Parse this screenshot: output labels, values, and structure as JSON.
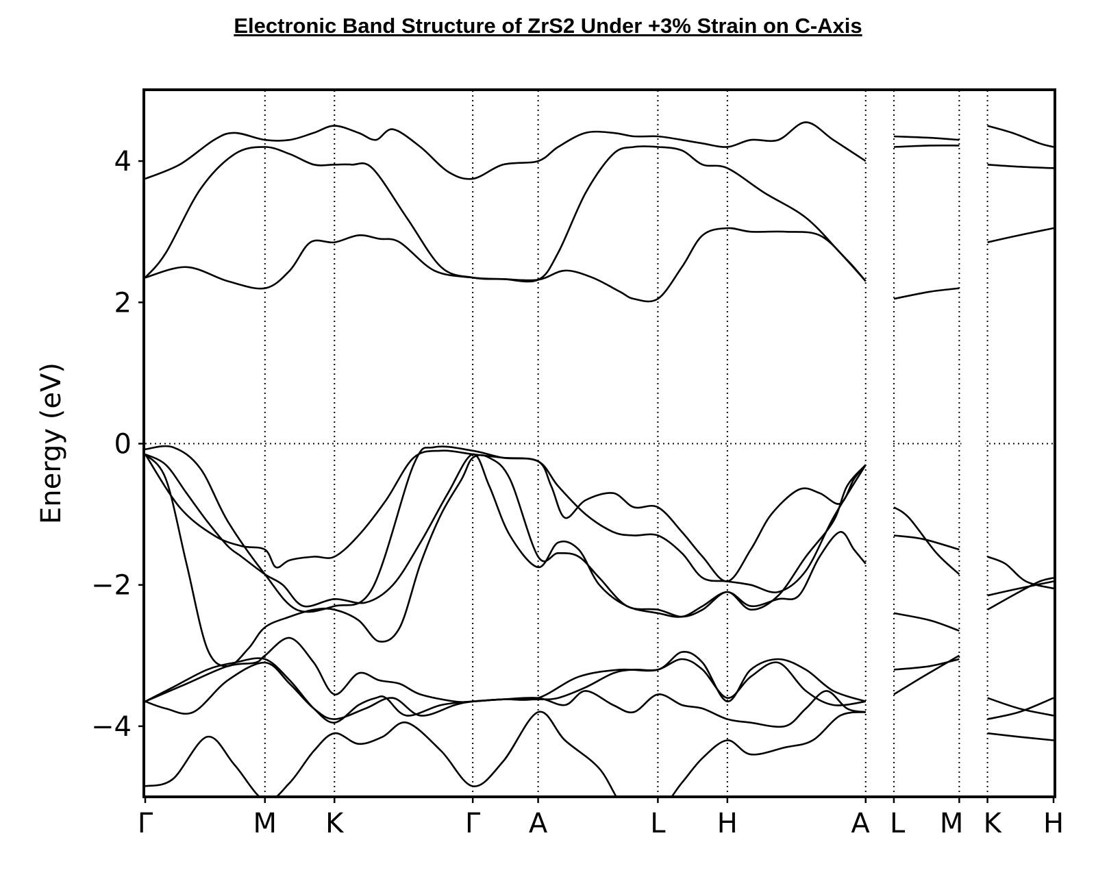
{
  "chart_data": {
    "type": "line",
    "title": "Electronic Band Structure of ZrS2 Under +3% Strain on C-Axis",
    "xlabel": "",
    "ylabel": "Energy (eV)",
    "ylim": [
      -5,
      5
    ],
    "x_range": [
      0,
      13.2
    ],
    "fermi_level": 0,
    "y_ticks": [
      {
        "value": 4,
        "label": "4"
      },
      {
        "value": 2,
        "label": "2"
      },
      {
        "value": 0,
        "label": "0"
      },
      {
        "value": -2,
        "label": "−2"
      },
      {
        "value": -4,
        "label": "−4"
      }
    ],
    "high_symmetry_points": [
      {
        "x": 0.0,
        "label": "Γ"
      },
      {
        "x": 1.74,
        "label": "M"
      },
      {
        "x": 2.75,
        "label": "K"
      },
      {
        "x": 4.76,
        "label": "Γ"
      },
      {
        "x": 5.71,
        "label": "A"
      },
      {
        "x": 7.45,
        "label": "L"
      },
      {
        "x": 8.46,
        "label": "H"
      },
      {
        "x": 10.47,
        "label": "A"
      },
      {
        "x": 10.88,
        "label": "L"
      },
      {
        "x": 11.83,
        "label": "M"
      },
      {
        "x": 12.24,
        "label": "K"
      },
      {
        "x": 13.2,
        "label": "H"
      }
    ],
    "segments": [
      {
        "x_range": [
          0.0,
          10.47
        ],
        "bands": [
          {
            "x": [
              0,
              0.4,
              0.9,
              1.3,
              1.74,
              2.1,
              2.45,
              2.75,
              3.1,
              3.45,
              3.8,
              4.3,
              4.76,
              5.2,
              5.71,
              6.1,
              6.6,
              7.0,
              7.45,
              7.8,
              8.1,
              8.46,
              8.8,
              9.3,
              9.7,
              10.1,
              10.47
            ],
            "y": [
              -4.85,
              -4.75,
              -4.15,
              -4.55,
              -5.05,
              -4.8,
              -4.35,
              -4.1,
              -4.25,
              -4.15,
              -3.95,
              -4.35,
              -4.85,
              -4.5,
              -3.8,
              -4.2,
              -4.6,
              -5.2,
              -5.2,
              -4.8,
              -4.45,
              -4.2,
              -4.4,
              -4.3,
              -4.2,
              -3.85,
              -3.8
            ]
          },
          {
            "x": [
              0,
              0.3,
              0.7,
              1.2,
              1.74,
              2.1,
              2.45,
              2.75,
              3.2,
              3.6,
              4.0,
              4.5,
              4.76,
              5.2,
              5.71,
              6.1,
              6.4,
              6.8,
              7.1,
              7.45,
              7.8,
              8.1,
              8.46,
              8.8,
              9.3,
              9.6,
              9.9,
              10.2,
              10.47
            ],
            "y": [
              -3.65,
              -3.75,
              -3.8,
              -3.35,
              -3.1,
              -3.4,
              -3.75,
              -3.9,
              -3.75,
              -3.6,
              -3.85,
              -3.7,
              -3.65,
              -3.62,
              -3.6,
              -3.7,
              -3.5,
              -3.7,
              -3.8,
              -3.55,
              -3.7,
              -3.75,
              -3.9,
              -3.95,
              -4.0,
              -3.75,
              -3.5,
              -3.75,
              -3.8
            ]
          },
          {
            "x": [
              0,
              0.4,
              0.9,
              1.3,
              1.74,
              2.1,
              2.45,
              2.75,
              3.1,
              3.35,
              3.5,
              3.8,
              4.3,
              4.76,
              5.2,
              5.71,
              6.3,
              6.9,
              7.45,
              7.8,
              8.1,
              8.46,
              8.8,
              9.2,
              9.6,
              10.0,
              10.47
            ],
            "y": [
              -3.65,
              -3.45,
              -3.2,
              -3.1,
              -3.05,
              -3.35,
              -3.75,
              -3.95,
              -3.7,
              -3.6,
              -3.6,
              -3.85,
              -3.7,
              -3.65,
              -3.62,
              -3.6,
              -3.3,
              -3.2,
              -3.2,
              -2.95,
              -3.1,
              -3.65,
              -3.2,
              -3.05,
              -3.2,
              -3.5,
              -3.65
            ]
          },
          {
            "x": [
              0,
              0.6,
              1.2,
              1.6,
              1.74,
              2.1,
              2.45,
              2.75,
              3.1,
              3.4,
              3.7,
              4.0,
              4.5,
              4.76,
              5.2,
              5.71,
              6.0,
              6.4,
              6.8,
              7.1,
              7.45,
              7.8,
              8.1,
              8.46,
              8.8,
              9.2,
              9.6,
              10.0,
              10.47
            ],
            "y": [
              -3.65,
              -3.4,
              -3.15,
              -3.1,
              -3.0,
              -2.75,
              -3.1,
              -3.55,
              -3.25,
              -3.35,
              -3.4,
              -3.55,
              -3.65,
              -3.65,
              -3.62,
              -3.62,
              -3.6,
              -3.45,
              -3.25,
              -3.2,
              -3.2,
              -3.05,
              -3.2,
              -3.6,
              -3.3,
              -3.1,
              -3.5,
              -3.7,
              -3.65
            ]
          },
          {
            "x": [
              0,
              0.3,
              0.6,
              0.9,
              1.2,
              1.5,
              1.74,
              2.1,
              2.45,
              2.75,
              3.1,
              3.4,
              3.7,
              4.0,
              4.3,
              4.6,
              4.76,
              5.0,
              5.3,
              5.71,
              6.0,
              6.3,
              6.6,
              7.0,
              7.45,
              7.8,
              8.1,
              8.46,
              8.8,
              9.2,
              9.6,
              10.0,
              10.2,
              10.47
            ],
            "y": [
              -0.15,
              -0.5,
              -1.7,
              -2.9,
              -3.15,
              -2.9,
              -2.6,
              -2.45,
              -2.35,
              -2.35,
              -2.5,
              -2.8,
              -2.6,
              -1.7,
              -1.0,
              -0.5,
              -0.2,
              -0.2,
              -0.5,
              -1.6,
              -1.55,
              -1.6,
              -1.9,
              -2.3,
              -2.35,
              -2.45,
              -2.35,
              -2.1,
              -2.35,
              -2.15,
              -1.6,
              -1.1,
              -0.6,
              -0.3
            ]
          },
          {
            "x": [
              0,
              0.3,
              0.6,
              0.9,
              1.2,
              1.4,
              1.74,
              2.0,
              2.3,
              2.75,
              3.2,
              3.6,
              4.0,
              4.4,
              4.76,
              5.0,
              5.3,
              5.71,
              6.0,
              6.3,
              6.6,
              7.0,
              7.45,
              7.8,
              8.1,
              8.46,
              8.8,
              9.2,
              9.5,
              9.8,
              10.1,
              10.3,
              10.47
            ],
            "y": [
              -0.15,
              -0.3,
              -0.7,
              -1.1,
              -1.45,
              -1.6,
              -1.85,
              -2.0,
              -2.3,
              -2.2,
              -2.25,
              -2.0,
              -1.4,
              -0.7,
              -0.15,
              -0.6,
              -1.3,
              -1.75,
              -1.4,
              -1.5,
              -2.0,
              -2.3,
              -2.4,
              -2.45,
              -2.3,
              -2.1,
              -2.3,
              -2.2,
              -2.15,
              -1.6,
              -1.25,
              -1.5,
              -1.7
            ]
          },
          {
            "x": [
              0,
              0.5,
              1.0,
              1.4,
              1.74,
              1.9,
              2.1,
              2.45,
              2.75,
              3.1,
              3.5,
              3.9,
              4.3,
              4.76,
              5.2,
              5.71,
              5.9,
              6.1,
              6.4,
              6.8,
              7.1,
              7.45,
              7.8,
              8.1,
              8.46,
              8.8,
              9.1,
              9.5,
              9.8,
              10.1,
              10.3,
              10.47
            ],
            "y": [
              -0.15,
              -0.9,
              -1.3,
              -1.45,
              -1.5,
              -1.75,
              -1.65,
              -1.6,
              -1.6,
              -1.3,
              -0.8,
              -0.2,
              -0.1,
              -0.15,
              -0.2,
              -0.25,
              -0.6,
              -1.05,
              -0.8,
              -0.7,
              -0.9,
              -0.9,
              -1.25,
              -1.6,
              -1.95,
              -1.5,
              -1.0,
              -0.65,
              -0.7,
              -0.85,
              -0.5,
              -0.3
            ]
          },
          {
            "x": [
              0,
              0.4,
              0.8,
              1.2,
              1.74,
              2.2,
              2.75,
              3.3,
              3.9,
              4.2,
              4.76,
              5.2,
              5.71,
              6.0,
              6.4,
              6.8,
              7.1,
              7.45,
              7.8,
              8.1,
              8.46,
              8.8,
              9.2,
              9.6,
              10.0,
              10.47
            ],
            "y": [
              -0.08,
              -0.05,
              -0.35,
              -1.1,
              -1.85,
              -2.35,
              -2.3,
              -2.05,
              -0.3,
              -0.05,
              -0.1,
              -0.2,
              -0.25,
              -0.6,
              -1.0,
              -1.25,
              -1.3,
              -1.3,
              -1.55,
              -1.9,
              -1.95,
              -2.0,
              -2.1,
              -1.8,
              -1.05,
              -0.3
            ]
          },
          {
            "x": [
              0,
              0.6,
              1.2,
              1.74,
              2.1,
              2.4,
              2.75,
              3.1,
              3.4,
              3.7,
              4.2,
              4.76,
              5.2,
              5.71,
              6.1,
              6.5,
              6.9,
              7.1,
              7.45,
              7.8,
              8.1,
              8.46,
              8.8,
              9.3,
              9.8,
              10.2,
              10.47
            ],
            "y": [
              2.35,
              2.5,
              2.3,
              2.2,
              2.45,
              2.85,
              2.85,
              2.95,
              2.9,
              2.85,
              2.45,
              2.35,
              2.33,
              2.32,
              2.45,
              2.35,
              2.15,
              2.05,
              2.05,
              2.5,
              2.95,
              3.05,
              3.0,
              3.0,
              2.95,
              2.6,
              2.3
            ]
          },
          {
            "x": [
              0,
              0.3,
              0.8,
              1.3,
              1.74,
              2.1,
              2.45,
              2.75,
              3.0,
              3.3,
              3.8,
              4.3,
              4.76,
              5.2,
              5.71,
              6.0,
              6.4,
              6.8,
              7.1,
              7.45,
              7.8,
              8.1,
              8.46,
              9.0,
              9.6,
              10.1,
              10.47
            ],
            "y": [
              2.35,
              2.7,
              3.6,
              4.1,
              4.2,
              4.1,
              3.95,
              3.95,
              3.95,
              3.9,
              3.2,
              2.5,
              2.35,
              2.33,
              2.32,
              2.7,
              3.55,
              4.1,
              4.2,
              4.2,
              4.15,
              3.95,
              3.9,
              3.55,
              3.2,
              2.7,
              2.3
            ]
          },
          {
            "x": [
              0,
              0.5,
              1.0,
              1.3,
              1.74,
              2.1,
              2.45,
              2.75,
              3.1,
              3.35,
              3.6,
              4.0,
              4.4,
              4.76,
              5.2,
              5.71,
              6.0,
              6.4,
              6.8,
              7.1,
              7.45,
              7.8,
              8.1,
              8.46,
              8.8,
              9.2,
              9.6,
              10.0,
              10.47
            ],
            "y": [
              3.75,
              3.95,
              4.3,
              4.4,
              4.3,
              4.3,
              4.4,
              4.5,
              4.4,
              4.3,
              4.45,
              4.2,
              3.85,
              3.75,
              3.95,
              4.0,
              4.2,
              4.4,
              4.4,
              4.35,
              4.35,
              4.3,
              4.25,
              4.2,
              4.3,
              4.3,
              4.55,
              4.3,
              4.0
            ]
          }
        ]
      },
      {
        "x_range": [
          10.88,
          11.83
        ],
        "bands": [
          {
            "x": [
              10.88,
              11.3,
              11.83
            ],
            "y": [
              -3.55,
              -3.3,
              -3.0
            ]
          },
          {
            "x": [
              10.88,
              11.4,
              11.83
            ],
            "y": [
              -3.2,
              -3.15,
              -3.05
            ]
          },
          {
            "x": [
              10.88,
              11.4,
              11.83
            ],
            "y": [
              -2.4,
              -2.5,
              -2.65
            ]
          },
          {
            "x": [
              10.88,
              11.1,
              11.5,
              11.83
            ],
            "y": [
              -0.9,
              -1.05,
              -1.55,
              -1.85
            ]
          },
          {
            "x": [
              10.88,
              11.3,
              11.83
            ],
            "y": [
              -1.3,
              -1.35,
              -1.5
            ]
          },
          {
            "x": [
              10.88,
              11.4,
              11.83
            ],
            "y": [
              2.05,
              2.15,
              2.2
            ]
          },
          {
            "x": [
              10.88,
              11.4,
              11.83
            ],
            "y": [
              4.2,
              4.22,
              4.22
            ]
          },
          {
            "x": [
              10.88,
              11.4,
              11.83
            ],
            "y": [
              4.35,
              4.33,
              4.3
            ]
          }
        ]
      },
      {
        "x_range": [
          12.24,
          13.2
        ],
        "bands": [
          {
            "x": [
              12.24,
              12.7,
              13.2
            ],
            "y": [
              -4.1,
              -4.15,
              -4.2
            ]
          },
          {
            "x": [
              12.24,
              12.7,
              13.2
            ],
            "y": [
              -3.9,
              -3.8,
              -3.6
            ]
          },
          {
            "x": [
              12.24,
              12.7,
              13.2
            ],
            "y": [
              -3.6,
              -3.75,
              -3.85
            ]
          },
          {
            "x": [
              12.24,
              12.7,
              13.0,
              13.2
            ],
            "y": [
              -2.35,
              -2.1,
              -1.95,
              -1.9
            ]
          },
          {
            "x": [
              12.24,
              12.7,
              13.2
            ],
            "y": [
              -2.15,
              -2.05,
              -1.95
            ]
          },
          {
            "x": [
              12.24,
              12.5,
              12.8,
              13.2
            ],
            "y": [
              -1.6,
              -1.7,
              -1.95,
              -2.05
            ]
          },
          {
            "x": [
              12.24,
              12.7,
              13.2
            ],
            "y": [
              2.85,
              2.95,
              3.05
            ]
          },
          {
            "x": [
              12.24,
              12.7,
              13.2
            ],
            "y": [
              3.95,
              3.92,
              3.9
            ]
          },
          {
            "x": [
              12.24,
              12.6,
              13.0,
              13.2
            ],
            "y": [
              4.5,
              4.4,
              4.25,
              4.2
            ]
          }
        ]
      }
    ]
  }
}
